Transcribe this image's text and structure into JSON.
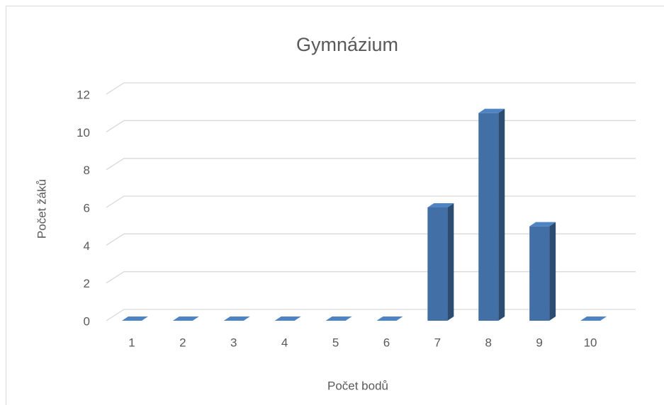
{
  "chart_data": {
    "type": "bar",
    "title": "Gymnázium",
    "x_label": "Počet bodů",
    "y_label": "Počet žáků",
    "categories": [
      "1",
      "2",
      "3",
      "4",
      "5",
      "6",
      "7",
      "8",
      "9",
      "10"
    ],
    "values": [
      0,
      0,
      0,
      0,
      0,
      0,
      6,
      11,
      5,
      0
    ],
    "color": "#4270a6",
    "ylim": [
      0,
      12
    ],
    "yticks": [
      0,
      2,
      4,
      6,
      8,
      10,
      12
    ],
    "grid": true
  }
}
